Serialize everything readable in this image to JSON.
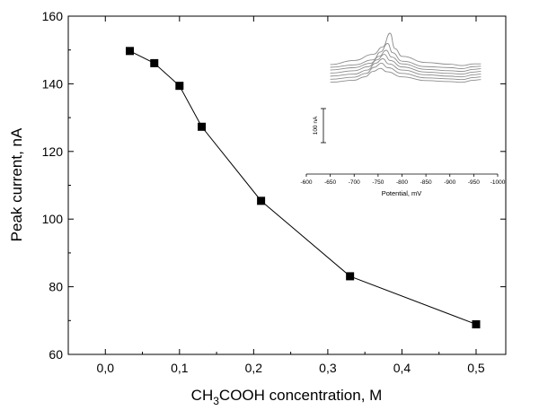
{
  "chart_data": [
    {
      "type": "line",
      "title": "",
      "xlabel_parts": [
        "CH",
        "3",
        "COOH concentration, M"
      ],
      "ylabel": "Peak current, nA",
      "xlim": [
        -0.05,
        0.54
      ],
      "ylim": [
        60,
        160
      ],
      "xticks": [
        0.0,
        0.1,
        0.2,
        0.3,
        0.4,
        0.5
      ],
      "xtick_labels": [
        "0,0",
        "0,1",
        "0,2",
        "0,3",
        "0,4",
        "0,5"
      ],
      "yticks": [
        60,
        80,
        100,
        120,
        140,
        160
      ],
      "ytick_labels": [
        "60",
        "80",
        "100",
        "120",
        "140",
        "160"
      ],
      "grid": false,
      "marker": "square",
      "series": [
        {
          "x": [
            0.033,
            0.066,
            0.1,
            0.13,
            0.21,
            0.33,
            0.5
          ],
          "y": [
            149.7,
            146.1,
            139.4,
            127.3,
            105.4,
            83.1,
            68.9
          ]
        }
      ]
    },
    {
      "type": "line",
      "title": "",
      "xlabel": "Potential, mV",
      "scale_bar_label": "100 nA",
      "xlim": [
        -600,
        -1000
      ],
      "xticks": [
        -600,
        -650,
        -700,
        -750,
        -800,
        -850,
        -900,
        -950,
        -1000
      ],
      "xtick_labels": [
        "-600",
        "-650",
        "-700",
        "-750",
        "-800",
        "-850",
        "-900",
        "-950",
        "-1000"
      ],
      "grid": false,
      "line_color": "#8c8c8c",
      "series_note_unlabeled_traces": 7,
      "series": [
        {
          "x": [
            -650,
            -700,
            -740,
            -760,
            -775,
            -785,
            -800,
            -850,
            -900,
            -925,
            -950,
            -965
          ],
          "y": [
            92,
            80,
            62,
            40,
            0,
            45,
            68,
            86,
            91,
            95,
            90,
            90
          ]
        },
        {
          "x": [
            -650,
            -700,
            -740,
            -755,
            -770,
            -780,
            -800,
            -850,
            -900,
            -925,
            -950,
            -965
          ],
          "y": [
            100,
            93,
            78,
            55,
            30,
            57,
            82,
            98,
            101,
            104,
            98,
            97
          ]
        },
        {
          "x": [
            -650,
            -700,
            -735,
            -752,
            -767,
            -778,
            -800,
            -850,
            -900,
            -925,
            -950,
            -965
          ],
          "y": [
            108,
            101,
            88,
            68,
            50,
            70,
            90,
            106,
            110,
            112,
            106,
            104
          ]
        },
        {
          "x": [
            -650,
            -700,
            -730,
            -748,
            -763,
            -775,
            -800,
            -850,
            -900,
            -925,
            -950,
            -965
          ],
          "y": [
            117,
            110,
            98,
            78,
            62,
            80,
            99,
            114,
            118,
            120,
            114,
            112
          ]
        },
        {
          "x": [
            -650,
            -700,
            -728,
            -745,
            -760,
            -772,
            -800,
            -850,
            -900,
            -925,
            -950,
            -965
          ],
          "y": [
            126,
            120,
            108,
            88,
            75,
            90,
            108,
            122,
            126,
            128,
            122,
            120
          ]
        },
        {
          "x": [
            -650,
            -700,
            -725,
            -742,
            -757,
            -770,
            -800,
            -850,
            -900,
            -925,
            -950,
            -965
          ],
          "y": [
            135,
            129,
            118,
            100,
            88,
            101,
            118,
            131,
            134,
            136,
            130,
            128
          ]
        },
        {
          "x": [
            -650,
            -700,
            -722,
            -740,
            -755,
            -768,
            -800,
            -850,
            -900,
            -925,
            -950,
            -965
          ],
          "y": [
            144,
            138,
            128,
            112,
            103,
            113,
            128,
            139,
            142,
            144,
            138,
            136
          ]
        }
      ]
    }
  ]
}
